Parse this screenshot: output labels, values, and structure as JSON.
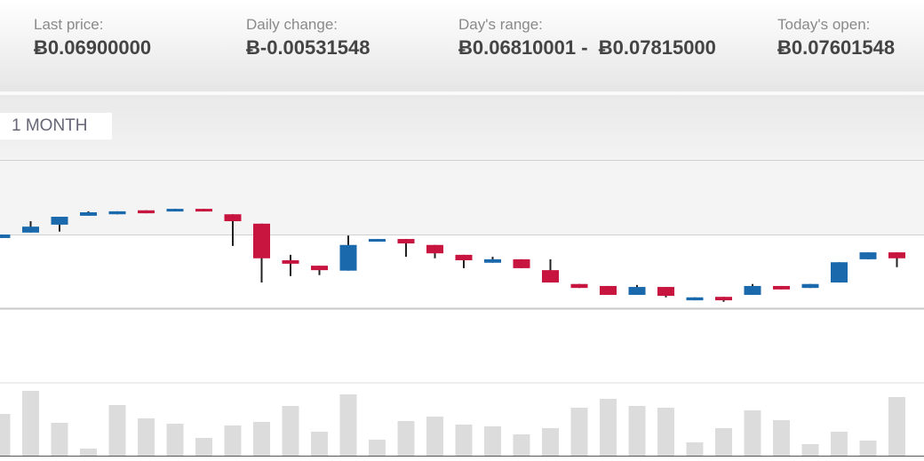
{
  "header": {
    "stats": [
      {
        "label": "Last price:",
        "value": "Ƀ0.06900000"
      },
      {
        "label": "Daily change:",
        "value": "Ƀ-0.00531548"
      },
      {
        "label": "Day's range:",
        "value": "Ƀ0.06810001 -  Ƀ0.07815000"
      },
      {
        "label": "Today's open:",
        "value": "Ƀ0.07601548"
      }
    ],
    "range_button": "1 MONTH"
  },
  "chart_data": {
    "type": "candlestick",
    "up_color": "#1a69ad",
    "down_color": "#c8153f",
    "volume_color": "#dcdcdc",
    "grid": true,
    "ylim": [
      0.06,
      0.09
    ],
    "yticks": [
      0.06,
      0.075,
      0.09
    ],
    "volume_ylim": [
      0,
      82
    ],
    "open": [
      0.0742,
      0.0753,
      0.0769,
      0.0787,
      0.079,
      0.0798,
      0.0796,
      0.0801,
      0.079,
      0.0771,
      0.0697,
      0.0686,
      0.0676,
      0.0735,
      0.074,
      0.0728,
      0.0708,
      0.0692,
      0.0699,
      0.0677,
      0.0649,
      0.0645,
      0.0627,
      0.0643,
      0.0616,
      0.0623,
      0.0627,
      0.0645,
      0.0641,
      0.0652,
      0.0699,
      0.0713
    ],
    "high": [
      0.0749,
      0.0776,
      0.0785,
      0.0796,
      0.0796,
      0.0798,
      0.0801,
      0.0801,
      0.079,
      0.0771,
      0.0708,
      0.0686,
      0.0747,
      0.074,
      0.074,
      0.0728,
      0.0708,
      0.0704,
      0.0699,
      0.0699,
      0.0649,
      0.0645,
      0.0647,
      0.0643,
      0.0622,
      0.0623,
      0.0649,
      0.0645,
      0.0649,
      0.0693,
      0.0713,
      0.0713
    ],
    "low": [
      0.0742,
      0.0753,
      0.0755,
      0.0787,
      0.079,
      0.0792,
      0.0796,
      0.0796,
      0.0726,
      0.0652,
      0.0665,
      0.0667,
      0.0676,
      0.0735,
      0.0704,
      0.0701,
      0.0681,
      0.0692,
      0.0681,
      0.0652,
      0.0641,
      0.0627,
      0.0627,
      0.0622,
      0.0616,
      0.0613,
      0.0627,
      0.0638,
      0.0641,
      0.0652,
      0.0699,
      0.0683
    ],
    "close": [
      0.0749,
      0.0765,
      0.0785,
      0.0794,
      0.0796,
      0.0792,
      0.0801,
      0.0796,
      0.0776,
      0.0701,
      0.069,
      0.0677,
      0.0728,
      0.074,
      0.0731,
      0.0711,
      0.0697,
      0.0699,
      0.0681,
      0.0652,
      0.0641,
      0.0627,
      0.0643,
      0.0625,
      0.0622,
      0.0616,
      0.0645,
      0.0638,
      0.0649,
      0.0693,
      0.0713,
      0.0701
    ],
    "volume": [
      47,
      73,
      37,
      8,
      57,
      42,
      36,
      20,
      34,
      38,
      56,
      27,
      69,
      18,
      39,
      44,
      35,
      33,
      24,
      31,
      54,
      64,
      56,
      54,
      15,
      31,
      51,
      40,
      13,
      27,
      17,
      66
    ]
  }
}
